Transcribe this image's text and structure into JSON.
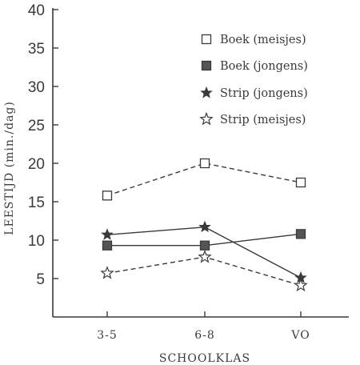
{
  "chart_data": {
    "type": "line",
    "categories": [
      "3-5",
      "6-8",
      "VO"
    ],
    "xlabel": "SCHOOLKLAS",
    "ylabel": "LEESTIJD (min./dag)",
    "ylim": [
      0,
      40
    ],
    "yticks": [
      5,
      10,
      15,
      20,
      25,
      30,
      35,
      40
    ],
    "grid": false,
    "legend_position": "top-right",
    "series": [
      {
        "name": "Boek (meisjes)",
        "values": [
          15.8,
          20.0,
          17.5
        ],
        "marker": "open-square",
        "line": "dashed",
        "color": "#3a3a3a"
      },
      {
        "name": "Boek (jongens)",
        "values": [
          9.3,
          9.3,
          10.8
        ],
        "marker": "filled-square",
        "line": "solid",
        "color": "#3a3a3a"
      },
      {
        "name": "Strip (jongens)",
        "values": [
          10.7,
          11.7,
          5.1
        ],
        "marker": "filled-star",
        "line": "solid",
        "color": "#3a3a3a"
      },
      {
        "name": "Strip (meisjes)",
        "values": [
          5.7,
          7.8,
          4.1
        ],
        "marker": "open-star",
        "line": "dashed",
        "color": "#3a3a3a"
      }
    ]
  }
}
